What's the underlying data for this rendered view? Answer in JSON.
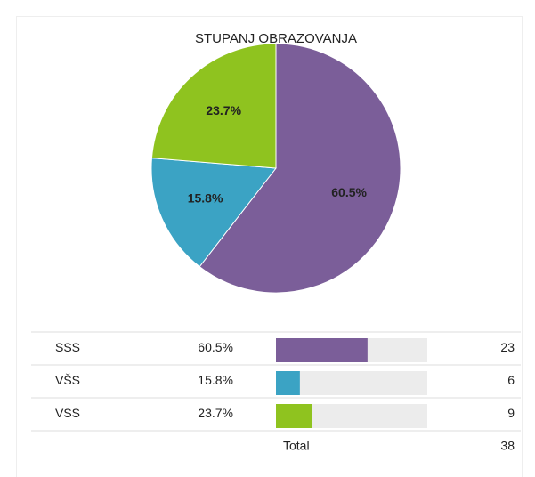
{
  "chart_data": {
    "type": "pie",
    "title": "STUPANJ OBRAZOVANJA",
    "categories": [
      "SSS",
      "VŠS",
      "VSS"
    ],
    "values": [
      60.5,
      15.8,
      23.7
    ],
    "value_labels": [
      "60.5%",
      "15.8%",
      "23.7%"
    ],
    "colors": [
      "#7b5e99",
      "#3ba3c4",
      "#8fc31f"
    ]
  },
  "table": {
    "counts": [
      23,
      6,
      9
    ],
    "total_label": "Total",
    "total": 38
  }
}
